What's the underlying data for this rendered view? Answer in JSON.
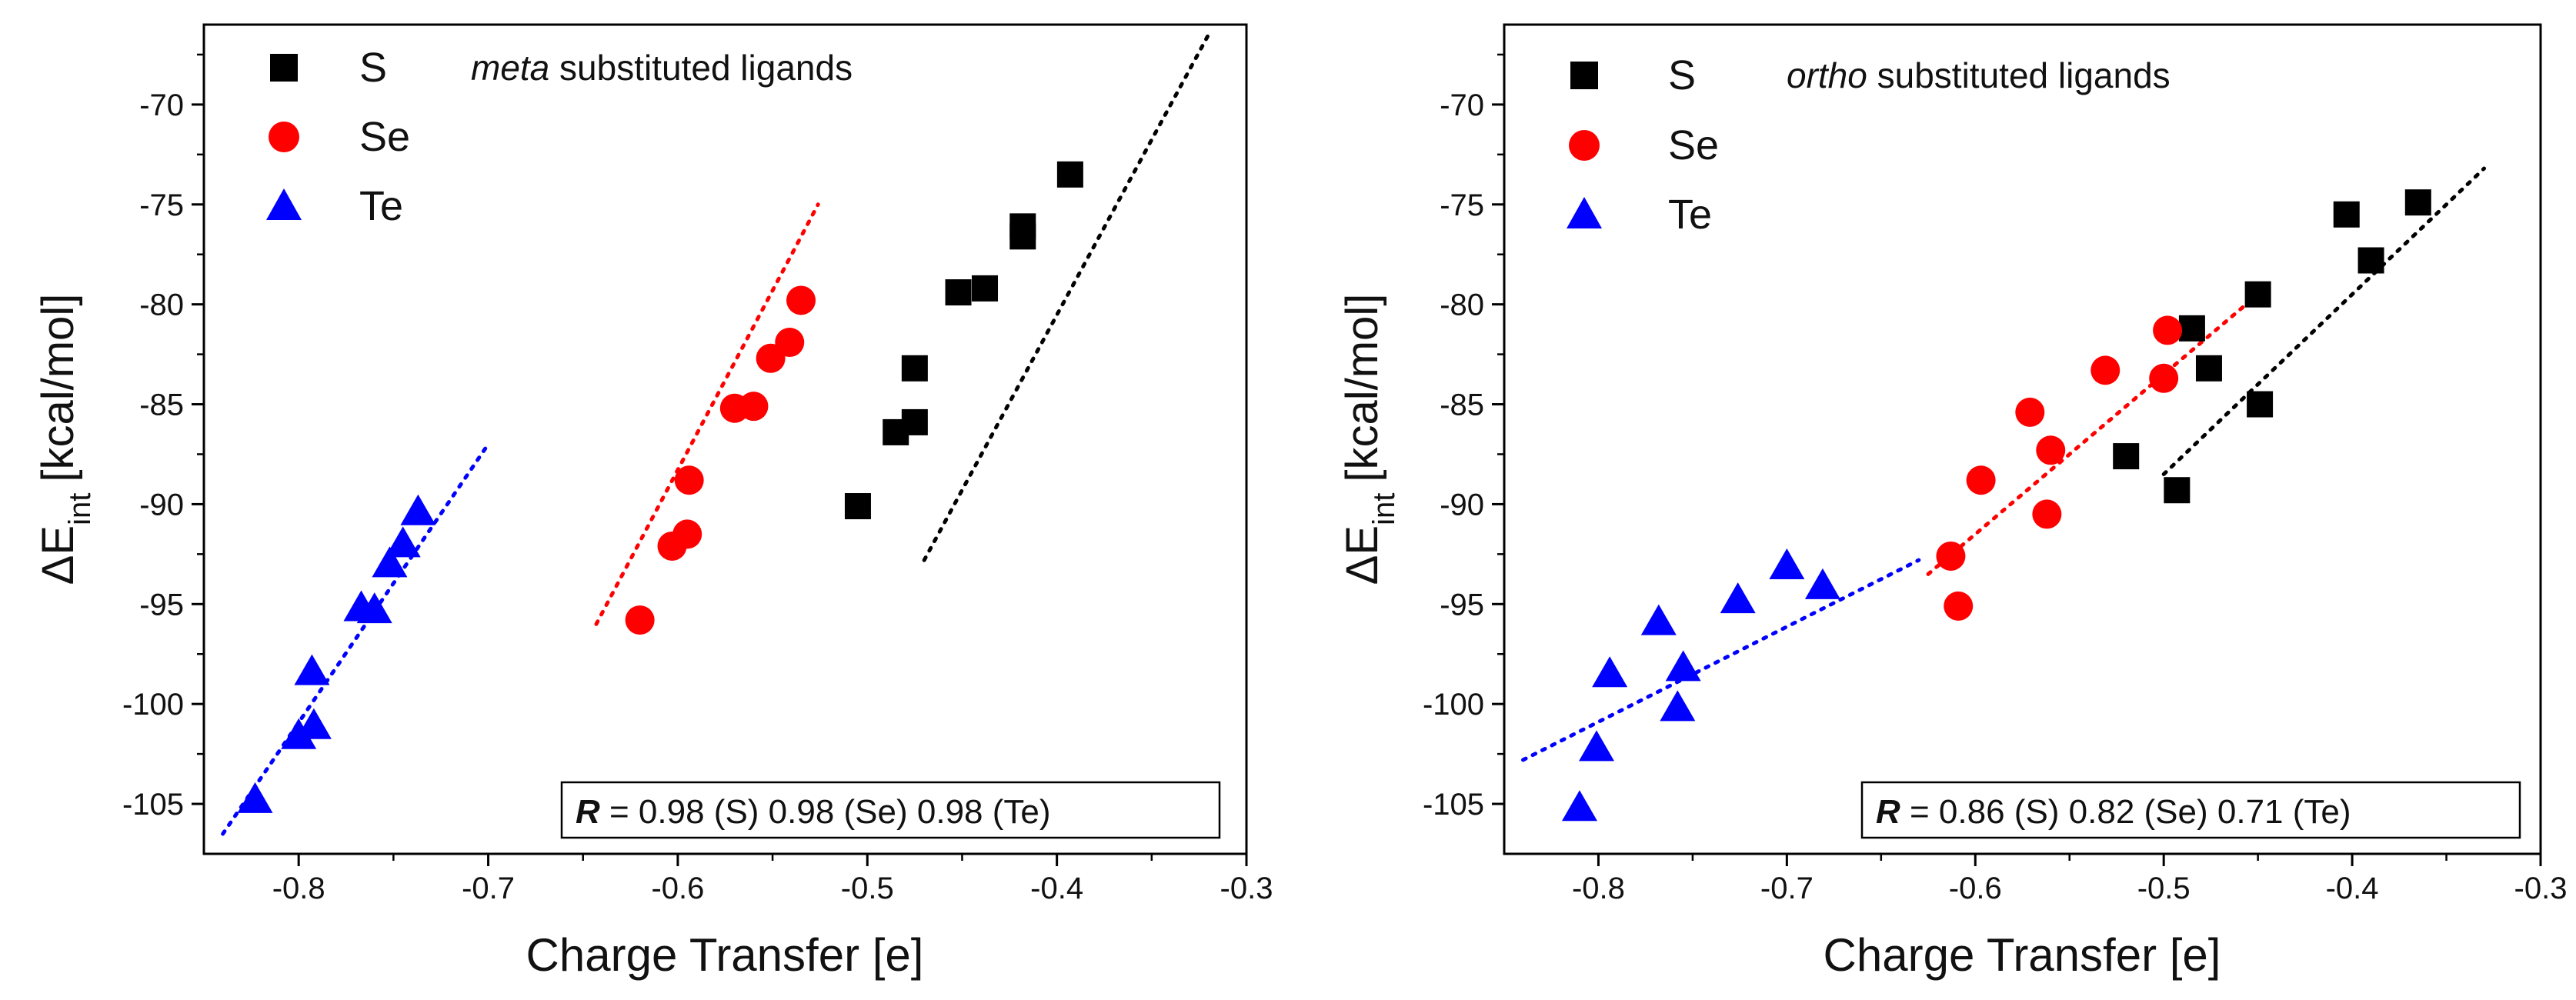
{
  "chart_data": [
    {
      "type": "scatter",
      "annotation": {
        "emph": "meta",
        "rest": " substituted ligands"
      },
      "xlabel": "Charge Transfer [e]",
      "ylabel": {
        "main": "ΔE",
        "sub": "int",
        "unit": "[kcal/mol]"
      },
      "xlim": [
        -0.85,
        -0.3
      ],
      "ylim": [
        -107.5,
        -66
      ],
      "xticks": [
        -0.8,
        -0.7,
        -0.6,
        -0.5,
        -0.4,
        -0.3
      ],
      "xtick_labels": [
        "-0.8",
        "-0.7",
        "-0.6",
        "-0.5",
        "-0.4",
        "-0.3"
      ],
      "yticks": [
        -105,
        -100,
        -95,
        -90,
        -85,
        -80,
        -75,
        -70
      ],
      "ytick_labels": [
        "-105",
        "-100",
        "-95",
        "-90",
        "-85",
        "-80",
        "-75",
        "-70"
      ],
      "legend_position": "top-left",
      "r_label": "R",
      "r_text": " = 0.98 (S) 0.98 (Se) 0.98 (Te)",
      "series": [
        {
          "name": "S",
          "marker": "square",
          "color": "#000000",
          "x": [
            -0.505,
            -0.485,
            -0.475,
            -0.475,
            -0.452,
            -0.438,
            -0.418,
            -0.418,
            -0.393
          ],
          "y": [
            -90.1,
            -86.4,
            -85.9,
            -83.2,
            -79.4,
            -79.2,
            -76.6,
            -76.1,
            -73.5
          ],
          "fit": {
            "x": [
              -0.47,
              -0.32
            ],
            "y": [
              -92.8,
              -66.5
            ]
          }
        },
        {
          "name": "Se",
          "marker": "circle",
          "color": "#ff0000",
          "x": [
            -0.62,
            -0.603,
            -0.595,
            -0.594,
            -0.57,
            -0.56,
            -0.551,
            -0.541,
            -0.535
          ],
          "y": [
            -95.8,
            -92.1,
            -91.5,
            -88.8,
            -85.2,
            -85.1,
            -82.7,
            -81.9,
            -79.8
          ],
          "fit": {
            "x": [
              -0.643,
              -0.526
            ],
            "y": [
              -96.0,
              -75.0
            ]
          }
        },
        {
          "name": "Te",
          "marker": "triangle",
          "color": "#0000ff",
          "x": [
            -0.823,
            -0.8,
            -0.792,
            -0.793,
            -0.767,
            -0.76,
            -0.752,
            -0.745,
            -0.737
          ],
          "y": [
            -104.8,
            -101.6,
            -101.1,
            -98.4,
            -95.2,
            -95.3,
            -93.0,
            -92.0,
            -90.4
          ],
          "fit": {
            "x": [
              -0.84,
              -0.7
            ],
            "y": [
              -106.5,
              -87.0
            ]
          }
        }
      ]
    },
    {
      "type": "scatter",
      "annotation": {
        "emph": "ortho",
        "rest": " substituted ligands"
      },
      "xlabel": "Charge Transfer [e]",
      "ylabel": {
        "main": "ΔE",
        "sub": "int",
        "unit": "[kcal/mol]"
      },
      "xlim": [
        -0.85,
        -0.3
      ],
      "ylim": [
        -107.5,
        -66
      ],
      "xticks": [
        -0.8,
        -0.7,
        -0.6,
        -0.5,
        -0.4,
        -0.3
      ],
      "xtick_labels": [
        "-0.8",
        "-0.7",
        "-0.6",
        "-0.5",
        "-0.4",
        "-0.3"
      ],
      "yticks": [
        -105,
        -100,
        -95,
        -90,
        -85,
        -80,
        -75,
        -70
      ],
      "ytick_labels": [
        "-105",
        "-100",
        "-95",
        "-90",
        "-85",
        "-80",
        "-75",
        "-70"
      ],
      "legend_position": "top-left",
      "r_label": "R",
      "r_text": " = 0.86 (S) 0.82 (Se) 0.71 (Te)",
      "series": [
        {
          "name": "S",
          "marker": "square",
          "color": "#000000",
          "x": [
            -0.52,
            -0.493,
            -0.485,
            -0.476,
            -0.45,
            -0.449,
            -0.403,
            -0.39,
            -0.365
          ],
          "y": [
            -87.6,
            -89.3,
            -81.2,
            -83.2,
            -79.5,
            -85.0,
            -75.5,
            -77.8,
            -74.9
          ],
          "fit": {
            "x": [
              -0.5,
              -0.33
            ],
            "y": [
              -88.5,
              -73.2
            ]
          }
        },
        {
          "name": "Se",
          "marker": "circle",
          "color": "#ff0000",
          "x": [
            -0.613,
            -0.609,
            -0.597,
            -0.571,
            -0.562,
            -0.56,
            -0.531,
            -0.5,
            -0.498
          ],
          "y": [
            -92.6,
            -95.1,
            -88.8,
            -85.4,
            -90.5,
            -87.3,
            -83.3,
            -83.7,
            -81.3
          ],
          "fit": {
            "x": [
              -0.625,
              -0.45
            ],
            "y": [
              -93.5,
              -79.5
            ]
          }
        },
        {
          "name": "Te",
          "marker": "triangle",
          "color": "#0000ff",
          "x": [
            -0.81,
            -0.801,
            -0.794,
            -0.768,
            -0.758,
            -0.755,
            -0.726,
            -0.7,
            -0.681
          ],
          "y": [
            -105.2,
            -102.2,
            -98.5,
            -95.9,
            -100.2,
            -98.2,
            -94.8,
            -93.1,
            -94.1
          ],
          "fit": {
            "x": [
              -0.84,
              -0.63
            ],
            "y": [
              -102.8,
              -92.8
            ]
          }
        }
      ]
    }
  ]
}
